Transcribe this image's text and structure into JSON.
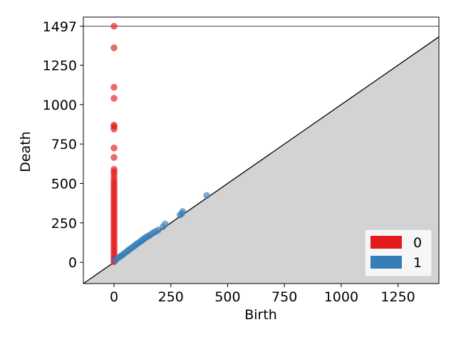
{
  "chart_data": {
    "type": "scatter",
    "title": "",
    "xlabel": "Birth",
    "ylabel": "Death",
    "xlim": [
      -135,
      1430
    ],
    "ylim": [
      -135,
      1555
    ],
    "x_ticks": [
      0,
      250,
      500,
      750,
      1000,
      1250
    ],
    "y_ticks": [
      0,
      250,
      500,
      750,
      1000,
      1250,
      1497
    ],
    "infinity_line": 1497,
    "diagonal": true,
    "grid": false,
    "legend_position": "bottom-right",
    "series": [
      {
        "name": "0",
        "color": "#e41a1c",
        "points": [
          [
            0,
            1497
          ],
          [
            0,
            1360
          ],
          [
            0,
            1110
          ],
          [
            0,
            1040
          ],
          [
            0,
            870
          ],
          [
            0,
            860
          ],
          [
            0,
            845
          ],
          [
            0,
            725
          ],
          [
            0,
            665
          ],
          [
            0,
            590
          ],
          [
            0,
            575
          ],
          [
            0,
            560
          ],
          [
            0,
            540
          ],
          [
            0,
            520
          ],
          [
            0,
            505
          ],
          [
            0,
            490
          ],
          [
            0,
            475
          ],
          [
            0,
            460
          ],
          [
            0,
            445
          ],
          [
            0,
            430
          ],
          [
            0,
            415
          ],
          [
            0,
            400
          ],
          [
            0,
            385
          ],
          [
            0,
            370
          ],
          [
            0,
            355
          ],
          [
            0,
            340
          ],
          [
            0,
            325
          ],
          [
            0,
            310
          ],
          [
            0,
            295
          ],
          [
            0,
            280
          ],
          [
            0,
            265
          ],
          [
            0,
            250
          ],
          [
            0,
            235
          ],
          [
            0,
            220
          ],
          [
            0,
            205
          ],
          [
            0,
            190
          ],
          [
            0,
            175
          ],
          [
            0,
            160
          ],
          [
            0,
            145
          ],
          [
            0,
            130
          ],
          [
            0,
            115
          ],
          [
            0,
            100
          ],
          [
            0,
            85
          ],
          [
            0,
            70
          ],
          [
            0,
            55
          ],
          [
            0,
            40
          ],
          [
            0,
            25
          ],
          [
            0,
            12
          ],
          [
            0,
            3
          ]
        ]
      },
      {
        "name": "1",
        "color": "#377eb8",
        "points": [
          [
            5,
            12
          ],
          [
            12,
            22
          ],
          [
            20,
            30
          ],
          [
            28,
            38
          ],
          [
            35,
            45
          ],
          [
            42,
            52
          ],
          [
            50,
            62
          ],
          [
            58,
            70
          ],
          [
            65,
            78
          ],
          [
            72,
            86
          ],
          [
            80,
            94
          ],
          [
            88,
            102
          ],
          [
            95,
            110
          ],
          [
            102,
            118
          ],
          [
            110,
            126
          ],
          [
            118,
            134
          ],
          [
            125,
            142
          ],
          [
            132,
            150
          ],
          [
            140,
            158
          ],
          [
            148,
            164
          ],
          [
            155,
            170
          ],
          [
            165,
            180
          ],
          [
            175,
            190
          ],
          [
            185,
            196
          ],
          [
            195,
            205
          ],
          [
            215,
            225
          ],
          [
            225,
            243
          ],
          [
            290,
            300
          ],
          [
            298,
            308
          ],
          [
            302,
            322
          ],
          [
            408,
            424
          ]
        ]
      }
    ]
  }
}
